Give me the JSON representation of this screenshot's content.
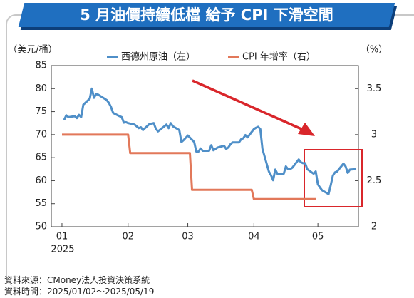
{
  "chart_data": {
    "type": "line",
    "title": "5 月油價持續低檔 給予 CPI 下滑空間",
    "y_label": "（美元/桶）",
    "y2_label": "（%）",
    "x_year_label": "2025",
    "xlim": [
      -5,
      139
    ],
    "xticks": [
      {
        "value": 0,
        "label": "01"
      },
      {
        "value": 31,
        "label": "02"
      },
      {
        "value": 59,
        "label": "03"
      },
      {
        "value": 90,
        "label": "04"
      },
      {
        "value": 120,
        "label": "05"
      }
    ],
    "ylim": [
      50,
      85
    ],
    "yticks": [
      50,
      55,
      60,
      65,
      70,
      75,
      80,
      85
    ],
    "y2lim": [
      2,
      3.75
    ],
    "y2ticks": [
      2,
      2.5,
      3,
      3.5
    ],
    "series": [
      {
        "name": "西德州原油（左）",
        "color": "#4f8fc8",
        "x": [
          1,
          2,
          3,
          6,
          7,
          8,
          9,
          10,
          13,
          14,
          15,
          16,
          17,
          21,
          22,
          23,
          24,
          27,
          28,
          29,
          30,
          31,
          34,
          35,
          36,
          37,
          38,
          41,
          42,
          43,
          44,
          45,
          48,
          49,
          50,
          51,
          52,
          55,
          56,
          57,
          58,
          59,
          62,
          63,
          64,
          65,
          66,
          69,
          70,
          71,
          72,
          73,
          76,
          77,
          78,
          79,
          80,
          83,
          84,
          85,
          86,
          87,
          90,
          91,
          92,
          93,
          94,
          97,
          98,
          99,
          100,
          101,
          104,
          105,
          106,
          107,
          108,
          111,
          112,
          113,
          114,
          115,
          118,
          119,
          120,
          121,
          122,
          125,
          126,
          127,
          128,
          129,
          132,
          133,
          134,
          135,
          138
        ],
        "values": [
          73.2,
          74.2,
          73.8,
          74,
          73.6,
          74.3,
          73.8,
          76.5,
          77.8,
          80,
          78,
          78.8,
          78.7,
          77.5,
          76.9,
          76,
          74.7,
          74,
          73.8,
          72.6,
          72.7,
          72.5,
          72.2,
          71.8,
          71.4,
          71.6,
          71,
          72.3,
          72.4,
          72.5,
          71.3,
          70.7,
          71.8,
          72.2,
          71.4,
          72.5,
          71.8,
          71,
          68.4,
          68.8,
          69.3,
          69.8,
          68.4,
          66.3,
          66.3,
          67,
          66.5,
          66.5,
          67.7,
          66.6,
          66.9,
          67.2,
          67.6,
          66.9,
          67.2,
          67.9,
          68.3,
          68.3,
          69,
          69.2,
          69.9,
          69.4,
          71.2,
          71.5,
          71.7,
          71.2,
          66.9,
          62,
          61.2,
          60.1,
          62.4,
          61.5,
          61.5,
          63.1,
          62.5,
          62.5,
          62.8,
          64.6,
          64,
          63.8,
          63.8,
          62.5,
          61.5,
          62,
          59.2,
          58.5,
          57.9,
          57.1,
          59,
          61.1,
          61.8,
          62,
          63.7,
          63.1,
          61.7,
          62.4,
          62.5
        ]
      },
      {
        "name": "CPI 年增率（右）",
        "color": "#e2785a",
        "axis": "y2",
        "x": [
          0,
          31,
          32,
          60,
          61,
          89,
          90,
          119
        ],
        "values": [
          3,
          3,
          2.8,
          2.8,
          2.4,
          2.4,
          2.3,
          2.3
        ]
      }
    ],
    "source": "資料來源：CMoney法人投資決策系統",
    "period": "資料時間：2025/01/02～2025/05/19"
  }
}
